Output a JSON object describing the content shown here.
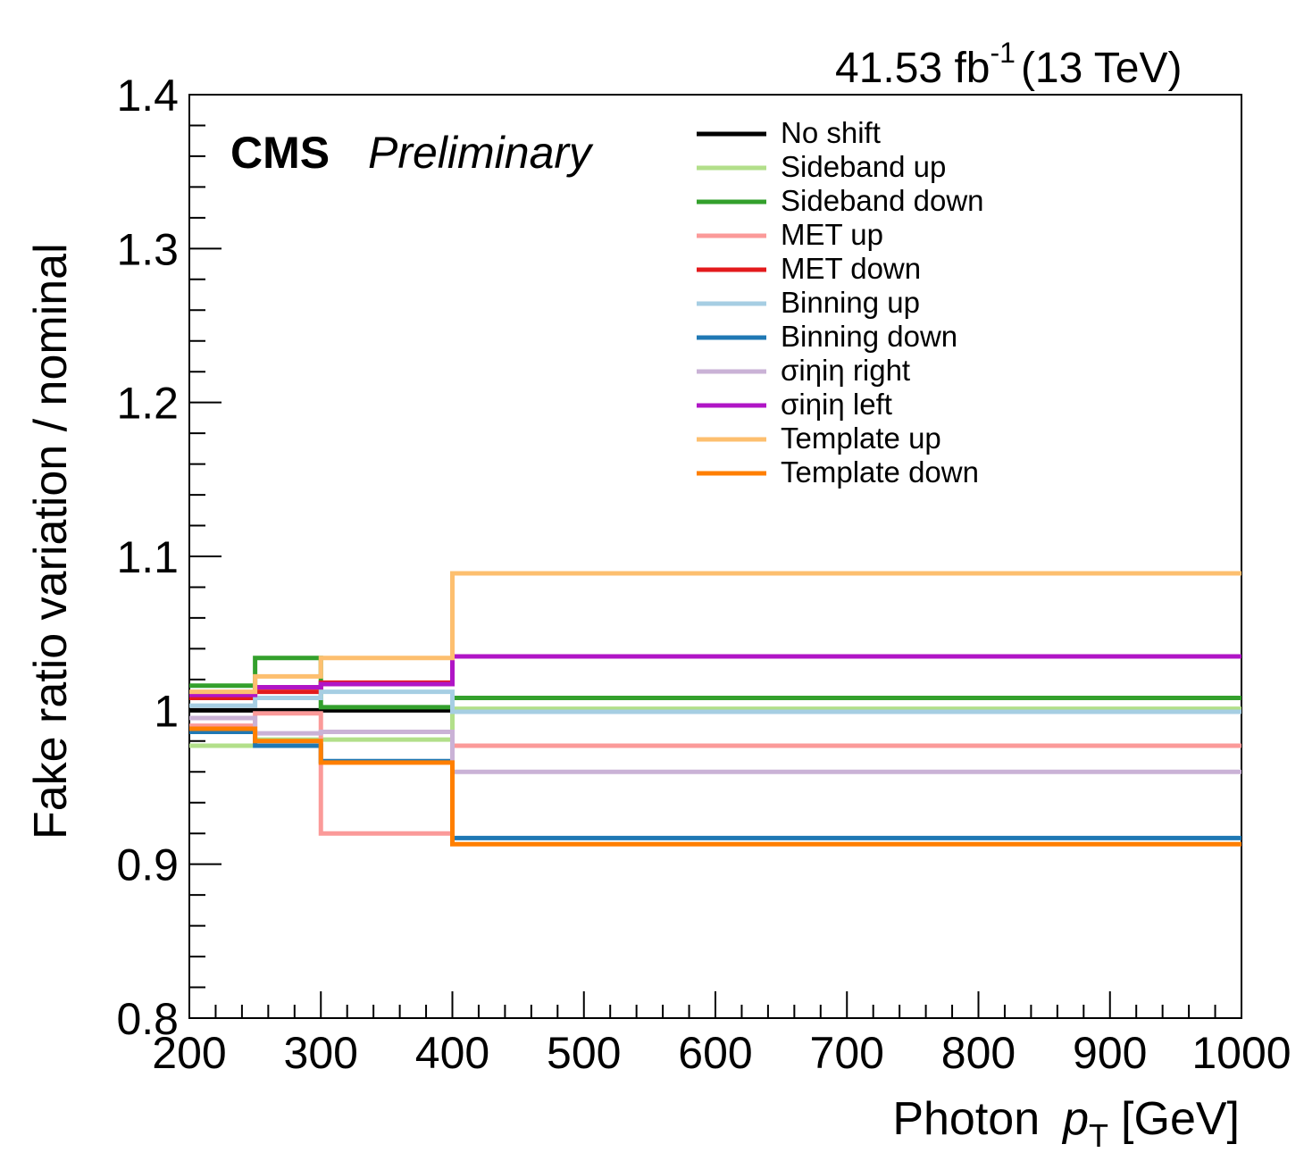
{
  "chart_data": {
    "type": "line",
    "step": true,
    "xlabel_main": "Photon",
    "xlabel_var": "p",
    "xlabel_sub": "T",
    "xlabel_unit": "[GeV]",
    "ylabel": "Fake ratio variation / nominal",
    "xlim": [
      200,
      1000
    ],
    "ylim": [
      0.8,
      1.4
    ],
    "x_ticks": [
      200,
      300,
      400,
      500,
      600,
      700,
      800,
      900,
      1000
    ],
    "x_tick_labels": [
      "200",
      "300",
      "400",
      "500",
      "600",
      "700",
      "800",
      "900",
      "1000"
    ],
    "y_ticks": [
      0.8,
      0.9,
      1.0,
      1.1,
      1.2,
      1.3,
      1.4
    ],
    "y_tick_labels": [
      "0.8",
      "0.9",
      "1",
      "1.1",
      "1.2",
      "1.3",
      "1.4"
    ],
    "bin_edges": [
      200,
      250,
      300,
      400,
      1000
    ],
    "legend_position": "top-right",
    "grid": false,
    "series": [
      {
        "name": "No shift",
        "color": "#000000",
        "values": [
          1.0,
          1.0,
          1.0,
          1.0
        ]
      },
      {
        "name": "Sideband up",
        "color": "#b2df8a",
        "values": [
          0.977,
          0.981,
          0.981,
          1.001
        ]
      },
      {
        "name": "Sideband down",
        "color": "#33a02c",
        "values": [
          1.016,
          1.034,
          1.002,
          1.008
        ]
      },
      {
        "name": "MET up",
        "color": "#fb9a99",
        "values": [
          0.99,
          0.998,
          0.92,
          0.977
        ]
      },
      {
        "name": "MET down",
        "color": "#e31a1c",
        "values": [
          1.008,
          1.012,
          1.018,
          1.035
        ]
      },
      {
        "name": "Binning up",
        "color": "#a6cee3",
        "values": [
          1.003,
          1.008,
          1.012,
          0.999
        ]
      },
      {
        "name": "Binning down",
        "color": "#1f78b4",
        "values": [
          0.986,
          0.977,
          0.967,
          0.917
        ]
      },
      {
        "name": "σiηiη right",
        "color": "#cab2d6",
        "values": [
          0.995,
          0.985,
          0.986,
          0.96
        ]
      },
      {
        "name": "σiηiη left",
        "color": "#b015c6",
        "values": [
          1.01,
          1.015,
          1.017,
          1.035
        ]
      },
      {
        "name": "Template up",
        "color": "#fdbf6f",
        "values": [
          1.012,
          1.022,
          1.034,
          1.089
        ]
      },
      {
        "name": "Template down",
        "color": "#ff7f00",
        "values": [
          0.988,
          0.98,
          0.966,
          0.913
        ]
      }
    ]
  },
  "header": {
    "cms": "CMS",
    "preliminary": "Preliminary",
    "lumi_value": "41.53 fb",
    "lumi_exp": "-1",
    "energy": "(13 TeV)"
  }
}
